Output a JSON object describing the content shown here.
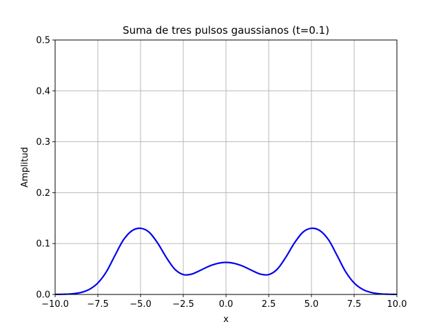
{
  "chart_data": {
    "type": "line",
    "title": "Suma de tres pulsos gaussianos (t=0.1)",
    "xlabel": "x",
    "ylabel": "Amplitud",
    "xlim": [
      -10,
      10
    ],
    "ylim": [
      0,
      0.5
    ],
    "grid": true,
    "x_ticks": [
      -10,
      -7.5,
      -5,
      -2.5,
      0,
      2.5,
      5,
      7.5,
      10
    ],
    "x_tick_labels": [
      "−10.0",
      "−7.5",
      "−5.0",
      "−2.5",
      "0.0",
      "2.5",
      "5.0",
      "7.5",
      "10.0"
    ],
    "y_ticks": [
      0,
      0.1,
      0.2,
      0.3,
      0.4,
      0.5
    ],
    "y_tick_labels": [
      "0.0",
      "0.1",
      "0.2",
      "0.3",
      "0.4",
      "0.5"
    ],
    "series": [
      {
        "color": "#0000ee",
        "x": [
          -10,
          -9.5,
          -9,
          -8.5,
          -8,
          -7.5,
          -7,
          -6.5,
          -6,
          -5.5,
          -5,
          -4.5,
          -4,
          -3.5,
          -3,
          -2.5,
          -2,
          -1.5,
          -1,
          -0.5,
          0,
          0.5,
          1,
          1.5,
          2,
          2.5,
          3,
          3.5,
          4,
          4.5,
          5,
          5.5,
          6,
          6.5,
          7,
          7.5,
          8,
          8.5,
          9,
          9.5,
          10
        ],
        "y": [
          0.0001,
          0.0004,
          0.0013,
          0.0038,
          0.0099,
          0.0225,
          0.0446,
          0.0766,
          0.1073,
          0.1253,
          0.13,
          0.1223,
          0.101,
          0.0731,
          0.0497,
          0.039,
          0.0401,
          0.0474,
          0.0554,
          0.0609,
          0.063,
          0.0609,
          0.0554,
          0.0474,
          0.0401,
          0.039,
          0.0497,
          0.0731,
          0.101,
          0.1223,
          0.13,
          0.1253,
          0.1073,
          0.0766,
          0.0446,
          0.0225,
          0.0099,
          0.0038,
          0.0013,
          0.0004,
          0.0001
        ]
      }
    ]
  }
}
